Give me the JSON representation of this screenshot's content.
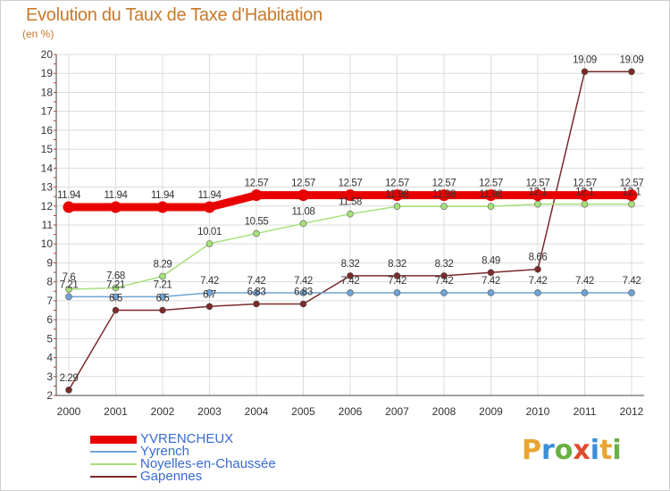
{
  "header": {
    "title": "Evolution du Taux de Taxe d'Habitation",
    "subtitle": "(en %)"
  },
  "logo": {
    "letters": [
      "P",
      "r",
      "o",
      "x",
      "i",
      "t",
      "i"
    ],
    "colors": [
      "#e8a531",
      "#3b8fd6",
      "#6ab043",
      "#e04b2e",
      "#3b8fd6",
      "#e8a531",
      "#6ab043"
    ]
  },
  "chart_data": {
    "type": "line",
    "title": "Evolution du Taux de Taxe d'Habitation",
    "ylabel": "(en %)",
    "xlabel": "",
    "x": [
      "2000",
      "2001",
      "2002",
      "2003",
      "2004",
      "2005",
      "2006",
      "2007",
      "2008",
      "2009",
      "2010",
      "2011",
      "2012"
    ],
    "ylim": [
      2,
      20
    ],
    "yticks": [
      "2",
      "3",
      "4",
      "5",
      "6",
      "7",
      "8",
      "9",
      "10",
      "11",
      "12",
      "13",
      "14",
      "15",
      "16",
      "17",
      "18",
      "19",
      "20"
    ],
    "grid": true,
    "legend_position": "bottom-left",
    "series": [
      {
        "name": "YVRENCHEUX",
        "color": "#e80000",
        "values": [
          11.94,
          11.94,
          11.94,
          11.94,
          12.57,
          12.57,
          12.57,
          12.57,
          12.57,
          12.57,
          12.57,
          12.57,
          12.57
        ],
        "labels": [
          "11.94",
          "11.94",
          "11.94",
          "11.94",
          "12.57",
          "12.57",
          "12.57",
          "12.57",
          "12.57",
          "12.57",
          "12.57",
          "12.57",
          "12.57"
        ]
      },
      {
        "name": "Yyrench",
        "color": "#6fa3d4",
        "values": [
          7.21,
          7.21,
          7.21,
          7.42,
          7.42,
          7.42,
          7.42,
          7.42,
          7.42,
          7.42,
          7.42,
          7.42,
          7.42
        ],
        "labels": [
          "7.21",
          "7.21",
          "7.21",
          "7.42",
          "7.42",
          "7.42",
          "7.42",
          "7.42",
          "7.42",
          "7.42",
          "7.42",
          "7.42",
          "7.42"
        ]
      },
      {
        "name": "Noyelles-en-Chaussée",
        "color": "#a8e07a",
        "values": [
          7.6,
          7.68,
          8.29,
          10.01,
          10.55,
          11.08,
          11.58,
          11.98,
          11.98,
          11.98,
          12.1,
          12.1,
          12.1
        ],
        "labels": [
          "7.6",
          "7.68",
          "8.29",
          "10.01",
          "10.55",
          "11.08",
          "11.58",
          "11.98",
          "11.98",
          "11.98",
          "12.1",
          "12.1",
          "12.1"
        ]
      },
      {
        "name": "Gapennes",
        "color": "#7a2a2a",
        "values": [
          2.29,
          6.5,
          6.5,
          6.7,
          6.83,
          6.83,
          8.32,
          8.32,
          8.32,
          8.49,
          8.66,
          19.09,
          19.09
        ],
        "labels": [
          "2.29",
          "6.5",
          "6.5",
          "6.7",
          "6.83",
          "6.83",
          "8.32",
          "8.32",
          "8.32",
          "8.49",
          "8.66",
          "19.09",
          "19.09"
        ]
      }
    ]
  }
}
